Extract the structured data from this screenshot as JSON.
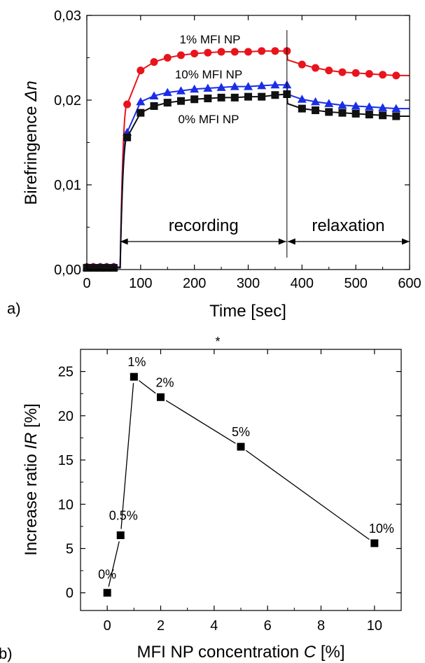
{
  "chart_data": [
    {
      "panel_label": "a)",
      "type": "line",
      "xlabel": "Time [sec]",
      "ylabel_main": "Birefringence ",
      "ylabel_symbol": "Δn",
      "xlim": [
        0,
        600
      ],
      "ylim": [
        0,
        0.03
      ],
      "xticks": [
        0,
        100,
        200,
        300,
        400,
        500,
        600
      ],
      "xtick_labels": [
        "0",
        "100",
        "200",
        "300",
        "400",
        "500",
        "600"
      ],
      "yticks": [
        0,
        0.01,
        0.02,
        0.03
      ],
      "ytick_labels": [
        "0,00",
        "0,01",
        "0,02",
        "0,03"
      ],
      "grid": false,
      "recording_end": 372,
      "annotations": {
        "recording": "recording",
        "relaxation": "relaxation"
      },
      "series": [
        {
          "name": "1% MFI NP",
          "color": "#e8141c",
          "marker": "circle",
          "x": [
            0,
            12,
            25,
            37,
            50,
            75,
            100,
            125,
            150,
            175,
            200,
            225,
            250,
            275,
            300,
            325,
            350,
            372,
            400,
            425,
            450,
            475,
            500,
            525,
            550,
            575
          ],
          "y": [
            0.0003,
            0.0003,
            0.0003,
            0.0003,
            0.0003,
            0.0195,
            0.0235,
            0.0245,
            0.025,
            0.0253,
            0.0255,
            0.0256,
            0.0257,
            0.0257,
            0.0257,
            0.0258,
            0.0258,
            0.0258,
            0.0242,
            0.0238,
            0.0235,
            0.0233,
            0.0232,
            0.0231,
            0.023,
            0.0229
          ]
        },
        {
          "name": "10% MFI NP",
          "color": "#1a2ee6",
          "marker": "triangle",
          "x": [
            0,
            12,
            25,
            37,
            50,
            75,
            100,
            125,
            150,
            175,
            200,
            225,
            250,
            275,
            300,
            325,
            350,
            372,
            400,
            425,
            450,
            475,
            500,
            525,
            550,
            575
          ],
          "y": [
            0.0003,
            0.0003,
            0.0003,
            0.0003,
            0.0003,
            0.0162,
            0.0198,
            0.0205,
            0.0209,
            0.0211,
            0.0213,
            0.0214,
            0.0215,
            0.0216,
            0.0216,
            0.0217,
            0.0218,
            0.0218,
            0.0201,
            0.0198,
            0.0196,
            0.0194,
            0.0193,
            0.0192,
            0.0191,
            0.019
          ]
        },
        {
          "name": "0% MFI NP",
          "color": "#111111",
          "marker": "square",
          "x": [
            0,
            12,
            25,
            37,
            50,
            75,
            100,
            125,
            150,
            175,
            200,
            225,
            250,
            275,
            300,
            325,
            350,
            372,
            400,
            425,
            450,
            475,
            500,
            525,
            550,
            575
          ],
          "y": [
            0.0002,
            0.0002,
            0.0002,
            0.0002,
            0.0002,
            0.0156,
            0.0185,
            0.0193,
            0.0197,
            0.0199,
            0.0201,
            0.0202,
            0.0203,
            0.0203,
            0.0204,
            0.0204,
            0.0206,
            0.0207,
            0.019,
            0.0188,
            0.0186,
            0.0185,
            0.0184,
            0.0183,
            0.0182,
            0.0181
          ]
        }
      ]
    },
    {
      "panel_label": "b)",
      "type": "line",
      "xlabel_main": "MFI NP concentration ",
      "xlabel_symbol": "C",
      "xlabel_unit": " [%]",
      "ylabel_main": "Increase ratio ",
      "ylabel_symbol": "IR",
      "ylabel_unit": " [%]",
      "xlim": [
        -1,
        11
      ],
      "ylim": [
        -2,
        27.5
      ],
      "xticks": [
        0,
        2,
        4,
        6,
        8,
        10
      ],
      "yticks": [
        0,
        5,
        10,
        15,
        20,
        25
      ],
      "grid": false,
      "marker": "square",
      "color": "#000000",
      "x": [
        0,
        0.5,
        1,
        2,
        5,
        10
      ],
      "values": [
        0,
        6.5,
        24.4,
        22.1,
        16.5,
        5.6
      ],
      "point_labels": [
        "0%",
        "0.5%",
        "1%",
        "2%",
        "5%",
        "10%"
      ]
    }
  ],
  "separator": "*"
}
